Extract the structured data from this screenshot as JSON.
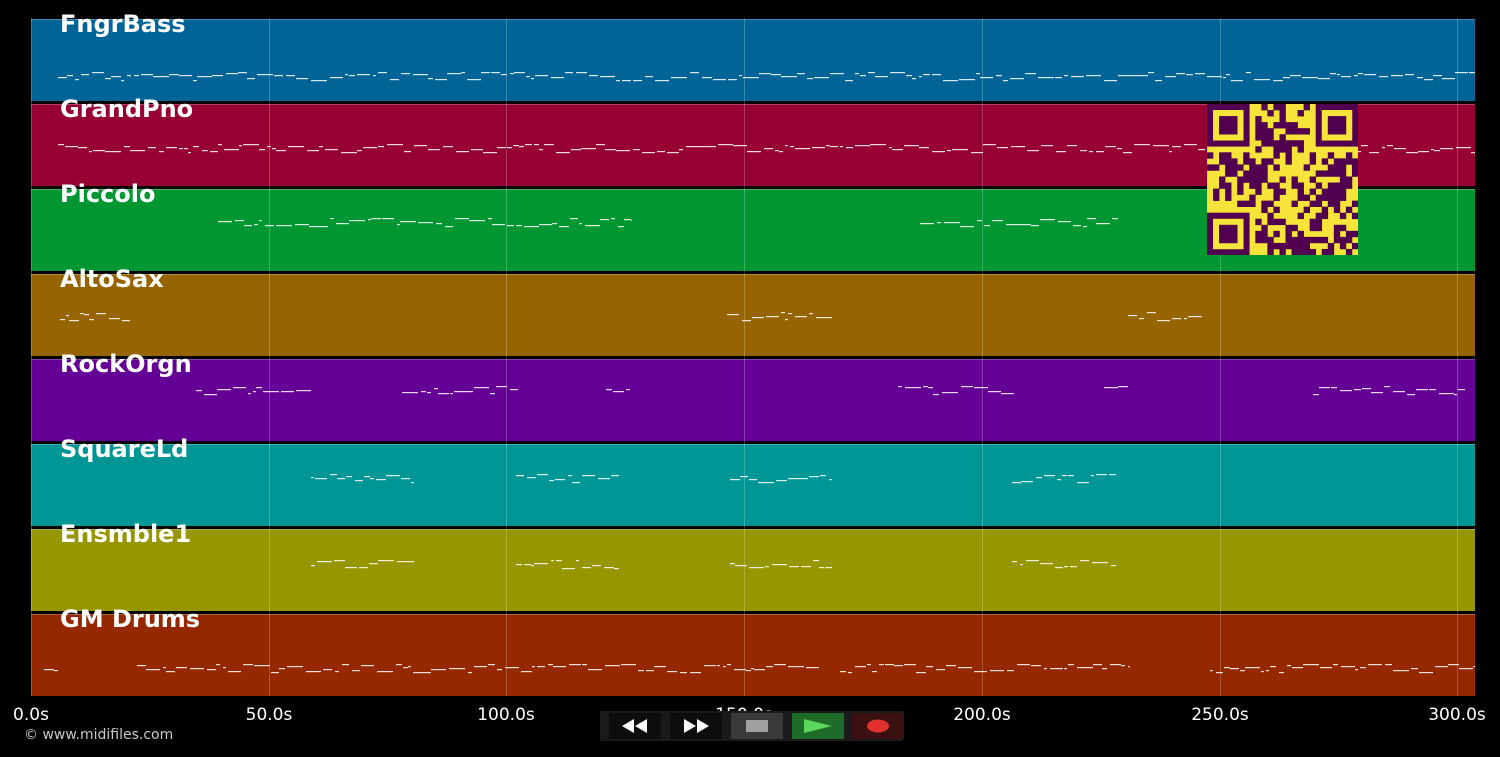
{
  "tracks": [
    {
      "name": "FngrBass",
      "color": "#006496"
    },
    {
      "name": "GrandPno",
      "color": "#960032"
    },
    {
      "name": "Piccolo",
      "color": "#009632"
    },
    {
      "name": "AltoSax",
      "color": "#966400"
    },
    {
      "name": "RockOrgn",
      "color": "#640096"
    },
    {
      "name": "SquareLd",
      "color": "#009696"
    },
    {
      "name": "Ensmble1",
      "color": "#969600"
    },
    {
      "name": "GM Drums",
      "color": "#962800"
    }
  ],
  "timeline": {
    "ticks": [
      "0.0s",
      "50.0s",
      "100.0s",
      "150.0s",
      "200.0s",
      "250.0s",
      "300.0s"
    ]
  },
  "copyright": "© www.midifiles.com",
  "controls": [
    {
      "name": "rewind-button",
      "icon": "rewind-icon"
    },
    {
      "name": "fast-forward-button",
      "icon": "fast-forward-icon"
    },
    {
      "name": "stop-button",
      "icon": "stop-icon"
    },
    {
      "name": "play-button",
      "icon": "play-icon"
    },
    {
      "name": "record-button",
      "icon": "record-icon"
    }
  ],
  "qr_code": {
    "fg": "#50004e",
    "bg": "#f7e43a"
  }
}
